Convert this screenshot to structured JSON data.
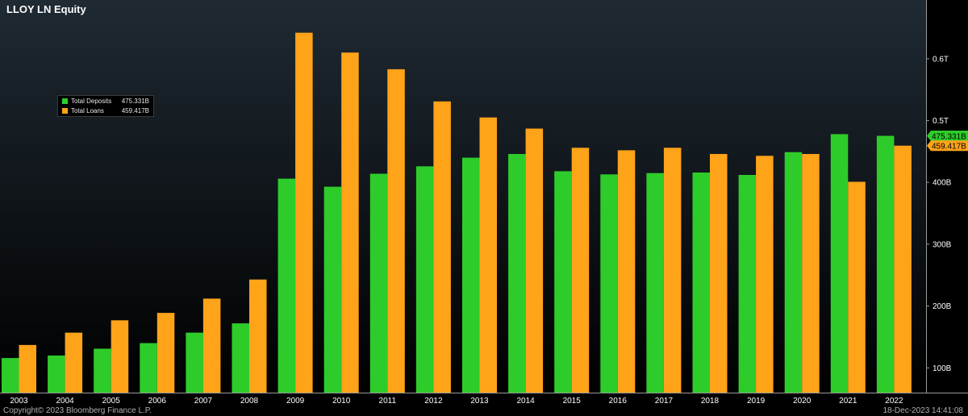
{
  "title": "LLOY LN Equity",
  "footer": {
    "copyright": "Copyright© 2023 Bloomberg Finance L.P.",
    "timestamp": "18-Dec-2023 14:41:08"
  },
  "colors": {
    "deposits": "#2ecc2a",
    "loans": "#ffa319",
    "background_top": "#1f2a33",
    "background_bottom": "#000000"
  },
  "legend": [
    {
      "name": "Total Deposits",
      "value": "475.331B"
    },
    {
      "name": "Total Loans",
      "value": "459.417B"
    }
  ],
  "chart_data": {
    "type": "bar",
    "title": "LLOY LN Equity",
    "categories": [
      "2003",
      "2004",
      "2005",
      "2006",
      "2007",
      "2008",
      "2009",
      "2010",
      "2011",
      "2012",
      "2013",
      "2014",
      "2015",
      "2016",
      "2017",
      "2018",
      "2019",
      "2020",
      "2021",
      "2022"
    ],
    "series": [
      {
        "name": "Total Deposits",
        "values": [
          116,
          120,
          131,
          140,
          157,
          172,
          406,
          393,
          414,
          426,
          440,
          446,
          418,
          413,
          415,
          416,
          412,
          449,
          478,
          475.331
        ]
      },
      {
        "name": "Total Loans",
        "values": [
          137,
          157,
          177,
          189,
          212,
          243,
          642,
          610,
          583,
          531,
          505,
          487,
          456,
          452,
          456,
          446,
          443,
          446,
          401,
          459.417
        ]
      }
    ],
    "ylim": [
      60,
      695
    ],
    "yticks": [
      {
        "value": 100,
        "label": "100B"
      },
      {
        "value": 200,
        "label": "200B"
      },
      {
        "value": 300,
        "label": "300B"
      },
      {
        "value": 400,
        "label": "400B"
      },
      {
        "value": 500,
        "label": "0.5T"
      },
      {
        "value": 600,
        "label": "0.6T"
      }
    ],
    "last_value_labels": [
      "475.331B",
      "459.417B"
    ],
    "grid": false,
    "legend_position": "top-left"
  }
}
